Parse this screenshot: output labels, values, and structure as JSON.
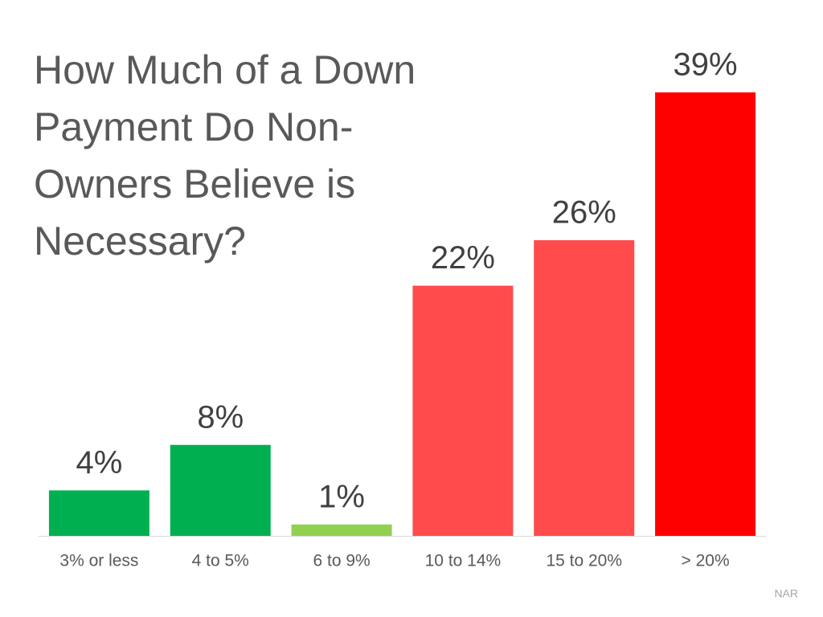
{
  "chart_data": {
    "type": "bar",
    "title": "How Much of a Down Payment Do Non-Owners Believe is Necessary?",
    "categories": [
      "3% or less",
      "4 to 5%",
      "6 to 9%",
      "10 to 14%",
      "15 to 20%",
      "> 20%"
    ],
    "values": [
      4,
      8,
      1,
      22,
      26,
      39
    ],
    "value_labels": [
      "4%",
      "8%",
      "1%",
      "22%",
      "26%",
      "39%"
    ],
    "colors": [
      "#00b050",
      "#00b050",
      "#92d050",
      "#ff4b4b",
      "#ff4b4b",
      "#ff0000"
    ],
    "source": "NAR"
  }
}
